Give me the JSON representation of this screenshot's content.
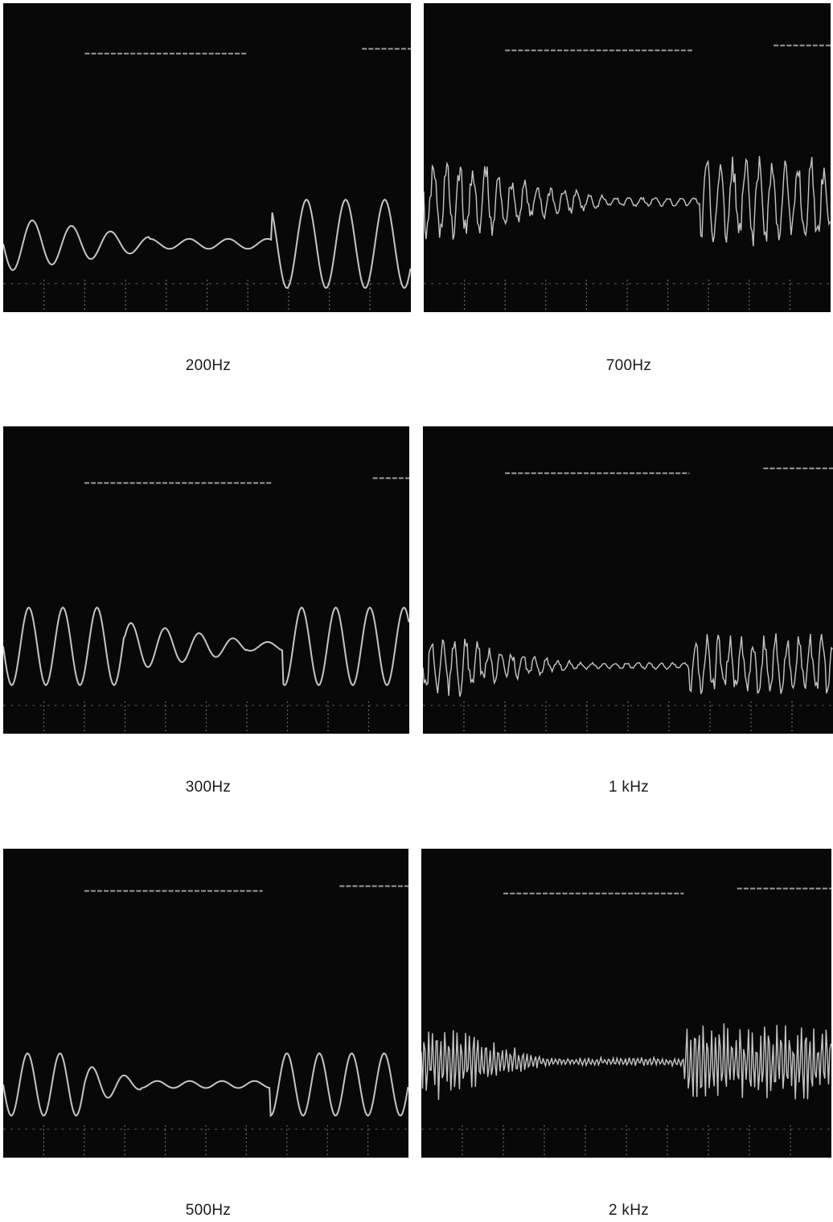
{
  "panels": [
    {
      "caption": "200Hz"
    },
    {
      "caption": "700Hz"
    },
    {
      "caption": "300Hz"
    },
    {
      "caption": "1 kHz"
    },
    {
      "caption": "500Hz"
    },
    {
      "caption": "2 kHz"
    }
  ],
  "colors": {
    "screen": "#080808",
    "trace": "#d8d8d8",
    "page": "#ffffff"
  }
}
